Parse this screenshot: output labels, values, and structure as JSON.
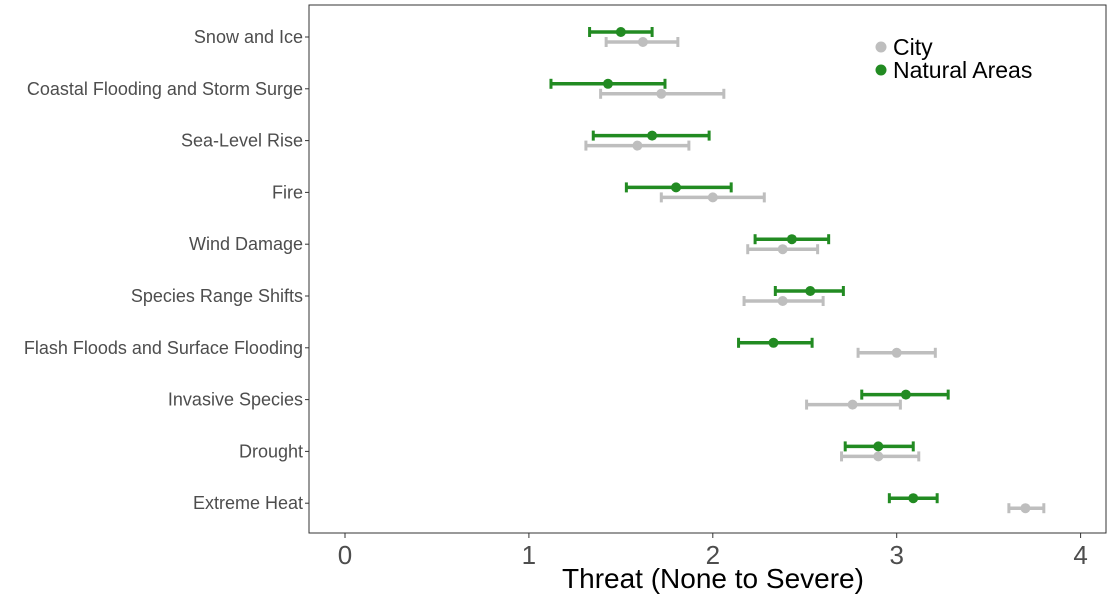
{
  "chart_data": {
    "type": "errorbar",
    "title": "",
    "xlabel": "Threat (None to Severe)",
    "ylabel": "",
    "xlim": [
      -0.2,
      4.15
    ],
    "xticks": [
      0,
      1,
      2,
      3,
      4
    ],
    "grid": false,
    "legend_position": "top-right",
    "categories": [
      "Snow and Ice",
      "Coastal Flooding and Storm Surge",
      "Sea-Level Rise",
      "Fire",
      "Wind Damage",
      "Species Range Shifts",
      "Flash Floods and Surface Flooding",
      "Invasive Species",
      "Drought",
      "Extreme Heat"
    ],
    "series": [
      {
        "name": "City",
        "color": "#bebebe",
        "values": [
          1.62,
          1.72,
          1.59,
          2.0,
          2.38,
          2.38,
          3.0,
          2.76,
          2.9,
          3.7
        ],
        "lower": [
          1.42,
          1.39,
          1.31,
          1.72,
          2.19,
          2.17,
          2.79,
          2.51,
          2.7,
          3.61
        ],
        "upper": [
          1.81,
          2.06,
          1.87,
          2.28,
          2.57,
          2.6,
          3.21,
          3.02,
          3.12,
          3.8
        ]
      },
      {
        "name": "Natural Areas",
        "color": "#228b22",
        "values": [
          1.5,
          1.43,
          1.67,
          1.8,
          2.43,
          2.53,
          2.33,
          3.05,
          2.9,
          3.09
        ],
        "lower": [
          1.33,
          1.12,
          1.35,
          1.53,
          2.23,
          2.34,
          2.14,
          2.81,
          2.72,
          2.96
        ],
        "upper": [
          1.67,
          1.74,
          1.98,
          2.1,
          2.63,
          2.71,
          2.54,
          3.28,
          3.09,
          3.22
        ]
      }
    ]
  }
}
